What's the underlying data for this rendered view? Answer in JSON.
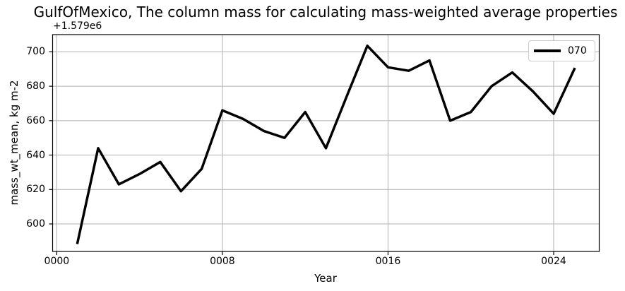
{
  "chart": {
    "title": "GulfOfMexico, The column mass for calculating mass-weighted average properties",
    "y_offset_label": "+1.579e6",
    "ylabel": "mass_wt_mean, kg m-2",
    "xlabel": "Year",
    "legend_label": "070"
  },
  "chart_data": {
    "type": "line",
    "title": "GulfOfMexico, The column mass for calculating mass-weighted average properties",
    "xlabel": "Year",
    "ylabel": "mass_wt_mean, kg m-2",
    "y_axis_offset": "+1.579e6",
    "grid": true,
    "legend_position": "upper right",
    "xlim": [
      -0.2,
      26.2
    ],
    "ylim": [
      584,
      710
    ],
    "x_tick_values": [
      0,
      8,
      16,
      24
    ],
    "x_tick_labels": [
      "0000",
      "0008",
      "0016",
      "0024"
    ],
    "y_tick_values": [
      600,
      620,
      640,
      660,
      680,
      700
    ],
    "y_tick_labels": [
      "600",
      "620",
      "640",
      "660",
      "680",
      "700"
    ],
    "colors": {
      "line": "#000000",
      "grid": "#b0b0b0",
      "spine": "#000000",
      "background": "#ffffff",
      "legend_border": "#cccccc"
    },
    "series": [
      {
        "name": "070",
        "color": "#000000",
        "line_width": 3.5,
        "x": [
          1,
          2,
          3,
          4,
          5,
          6,
          7,
          8,
          9,
          10,
          11,
          12,
          13,
          14,
          15,
          16,
          17,
          18,
          19,
          20,
          21,
          22,
          23,
          24,
          25
        ],
        "y": [
          589,
          644,
          623,
          629,
          636,
          619,
          632,
          666,
          661,
          654,
          650,
          665,
          644,
          674,
          703.5,
          691,
          689,
          695,
          660,
          665,
          680,
          688,
          677,
          664,
          690
        ]
      }
    ]
  }
}
